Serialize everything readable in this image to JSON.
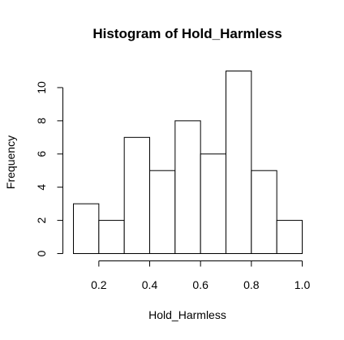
{
  "chart_data": {
    "type": "bar",
    "title": "Histogram of Hold_Harmless",
    "xlabel": "Hold_Harmless",
    "ylabel": "Frequency",
    "bins": [
      {
        "x0": 0.1,
        "x1": 0.2,
        "count": 3
      },
      {
        "x0": 0.2,
        "x1": 0.3,
        "count": 2
      },
      {
        "x0": 0.3,
        "x1": 0.4,
        "count": 7
      },
      {
        "x0": 0.4,
        "x1": 0.5,
        "count": 5
      },
      {
        "x0": 0.5,
        "x1": 0.6,
        "count": 8
      },
      {
        "x0": 0.6,
        "x1": 0.7,
        "count": 6
      },
      {
        "x0": 0.7,
        "x1": 0.8,
        "count": 11
      },
      {
        "x0": 0.8,
        "x1": 0.9,
        "count": 5
      },
      {
        "x0": 0.9,
        "x1": 1.0,
        "count": 2
      }
    ],
    "xlim": [
      0.1,
      1.0
    ],
    "ylim": [
      0,
      11
    ],
    "x_ticks": [
      0.2,
      0.4,
      0.6,
      0.8,
      1.0
    ],
    "x_tick_labels": [
      "0.2",
      "0.4",
      "0.6",
      "0.8",
      "1.0"
    ],
    "y_ticks": [
      0,
      2,
      4,
      6,
      8,
      10
    ],
    "y_tick_labels": [
      "0",
      "2",
      "4",
      "6",
      "8",
      "10"
    ],
    "grid": false,
    "bar_fill": "#ffffff",
    "bar_stroke": "#000000"
  }
}
